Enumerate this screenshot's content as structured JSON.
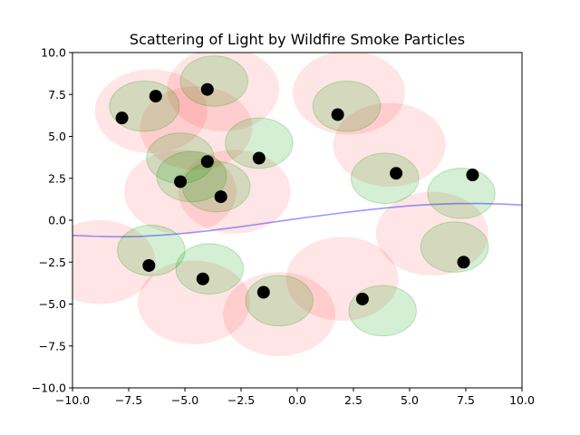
{
  "chart_data": {
    "type": "scatter",
    "title": "Scattering of Light by Wildfire Smoke Particles",
    "xlabel": "",
    "ylabel": "",
    "xlim": [
      -10,
      10
    ],
    "ylim": [
      -10,
      10
    ],
    "xticks": [
      -10,
      -7.5,
      -5,
      -2.5,
      0,
      2.5,
      5,
      7.5,
      10
    ],
    "yticks": [
      -10,
      -7.5,
      -5,
      -2.5,
      0,
      2.5,
      5,
      7.5,
      10
    ],
    "xtick_labels": [
      "−10.0",
      "−7.5",
      "−5.0",
      "−2.5",
      "0.0",
      "2.5",
      "5.0",
      "7.5",
      "10.0"
    ],
    "ytick_labels": [
      "−10.0",
      "−7.5",
      "−5.0",
      "−2.5",
      "0.0",
      "2.5",
      "5.0",
      "7.5",
      "10.0"
    ],
    "grid": false,
    "particles": [
      {
        "x": -7.8,
        "y": 6.1
      },
      {
        "x": -6.3,
        "y": 7.4
      },
      {
        "x": -4.0,
        "y": 7.8
      },
      {
        "x": 1.8,
        "y": 6.3
      },
      {
        "x": -1.7,
        "y": 3.7
      },
      {
        "x": -4.0,
        "y": 3.5
      },
      {
        "x": -5.2,
        "y": 2.3
      },
      {
        "x": -3.4,
        "y": 1.4
      },
      {
        "x": 4.4,
        "y": 2.8
      },
      {
        "x": 7.8,
        "y": 2.7
      },
      {
        "x": -6.6,
        "y": -2.7
      },
      {
        "x": -4.2,
        "y": -3.5
      },
      {
        "x": -1.5,
        "y": -4.3
      },
      {
        "x": 2.9,
        "y": -4.7
      },
      {
        "x": 7.4,
        "y": -2.5
      }
    ],
    "green_halos": [
      {
        "x": -6.8,
        "y": 6.8,
        "rx": 1.55,
        "ry": 1.5
      },
      {
        "x": -3.7,
        "y": 8.3,
        "rx": 1.5,
        "ry": 1.5
      },
      {
        "x": 2.2,
        "y": 6.8,
        "rx": 1.5,
        "ry": 1.5
      },
      {
        "x": -1.7,
        "y": 4.6,
        "rx": 1.5,
        "ry": 1.5
      },
      {
        "x": -5.2,
        "y": 3.7,
        "rx": 1.5,
        "ry": 1.5
      },
      {
        "x": -4.7,
        "y": 2.6,
        "rx": 1.55,
        "ry": 1.5
      },
      {
        "x": -3.6,
        "y": 2.0,
        "rx": 1.5,
        "ry": 1.5
      },
      {
        "x": 3.9,
        "y": 2.5,
        "rx": 1.5,
        "ry": 1.5
      },
      {
        "x": 7.3,
        "y": 1.6,
        "rx": 1.5,
        "ry": 1.5
      },
      {
        "x": -6.5,
        "y": -1.8,
        "rx": 1.5,
        "ry": 1.5
      },
      {
        "x": -3.9,
        "y": -2.9,
        "rx": 1.5,
        "ry": 1.5
      },
      {
        "x": -0.8,
        "y": -4.8,
        "rx": 1.5,
        "ry": 1.5
      },
      {
        "x": 3.8,
        "y": -5.4,
        "rx": 1.5,
        "ry": 1.5
      },
      {
        "x": 7.0,
        "y": -1.6,
        "rx": 1.5,
        "ry": 1.5
      }
    ],
    "red_halos": [
      {
        "x": -6.5,
        "y": 6.5,
        "rx": 2.5,
        "ry": 2.5
      },
      {
        "x": -3.3,
        "y": 7.8,
        "rx": 2.5,
        "ry": 2.5
      },
      {
        "x": 2.3,
        "y": 7.6,
        "rx": 2.5,
        "ry": 2.5
      },
      {
        "x": -4.5,
        "y": 5.5,
        "rx": 2.5,
        "ry": 2.5
      },
      {
        "x": 4.1,
        "y": 4.5,
        "rx": 2.5,
        "ry": 2.5
      },
      {
        "x": -5.2,
        "y": 1.7,
        "rx": 2.5,
        "ry": 2.5
      },
      {
        "x": -2.8,
        "y": 1.7,
        "rx": 2.5,
        "ry": 2.5
      },
      {
        "x": 6.0,
        "y": -0.8,
        "rx": 2.5,
        "ry": 2.5
      },
      {
        "x": -8.8,
        "y": -2.5,
        "rx": 2.5,
        "ry": 2.5
      },
      {
        "x": -4.6,
        "y": -4.9,
        "rx": 2.5,
        "ry": 2.5
      },
      {
        "x": -0.8,
        "y": -5.6,
        "rx": 2.5,
        "ry": 2.5
      },
      {
        "x": 2.0,
        "y": -3.5,
        "rx": 2.5,
        "ry": 2.5
      }
    ],
    "light_ray": {
      "x": [
        -10,
        -9,
        -8,
        -7,
        -6,
        -5,
        -4,
        -3,
        -2,
        -1,
        0,
        1,
        2,
        3,
        4,
        5,
        6,
        7,
        8,
        9,
        10
      ],
      "y": [
        -0.9,
        -0.96,
        -0.99,
        -0.97,
        -0.89,
        -0.78,
        -0.64,
        -0.47,
        -0.29,
        -0.1,
        0.09,
        0.27,
        0.44,
        0.6,
        0.74,
        0.86,
        0.94,
        0.99,
        1.0,
        0.97,
        0.91
      ]
    },
    "colors": {
      "particle": "#000000",
      "green_halo": "#00a000",
      "red_halo": "#ff0000",
      "light_ray": "#0000ff"
    }
  }
}
